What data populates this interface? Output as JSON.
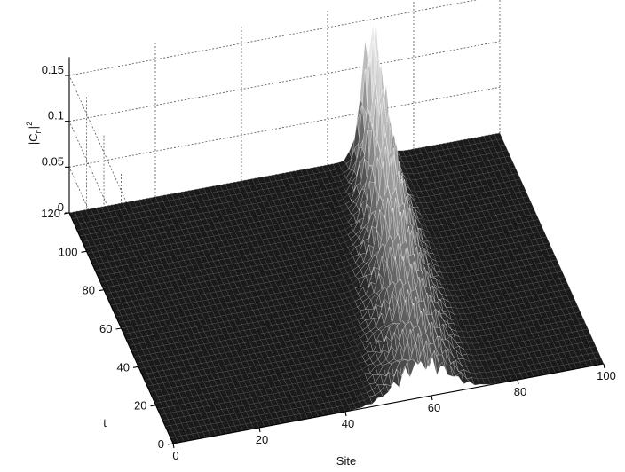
{
  "chart_data": {
    "type": "surface",
    "title": "",
    "xlabel": "Site",
    "ylabel": "t",
    "zlabel_base": "|C",
    "zlabel_sub": "n",
    "zlabel_tail": "|",
    "zlabel_sup": "2",
    "xlim": [
      0,
      100
    ],
    "ylim": [
      0,
      120
    ],
    "zlim": [
      0,
      0.17
    ],
    "x_ticks": [
      0,
      20,
      40,
      60,
      80,
      100
    ],
    "x_tick_labels": [
      "0",
      "20",
      "40",
      "60",
      "80",
      "100"
    ],
    "y_ticks": [
      0,
      20,
      40,
      60,
      80,
      100,
      120
    ],
    "y_tick_labels": [
      "0",
      "20",
      "40",
      "60",
      "80",
      "100",
      "120"
    ],
    "z_ticks": [
      0,
      0.05,
      0.1,
      0.15
    ],
    "z_tick_labels": [
      "0",
      "0.05",
      "0.1",
      "0.15"
    ],
    "grid": true,
    "colormap": "gray",
    "surface_color_dark": "#1a1a1a",
    "surface_color_light": "#e8e8e8",
    "wavepacket": {
      "center_site_at_t0": 58,
      "center_site_at_t120": 70,
      "peak_value_at_t0": 0.05,
      "peak_value_at_t120": 0.175,
      "width_sites_at_t0": 8,
      "width_sites_at_t120": 3
    }
  }
}
